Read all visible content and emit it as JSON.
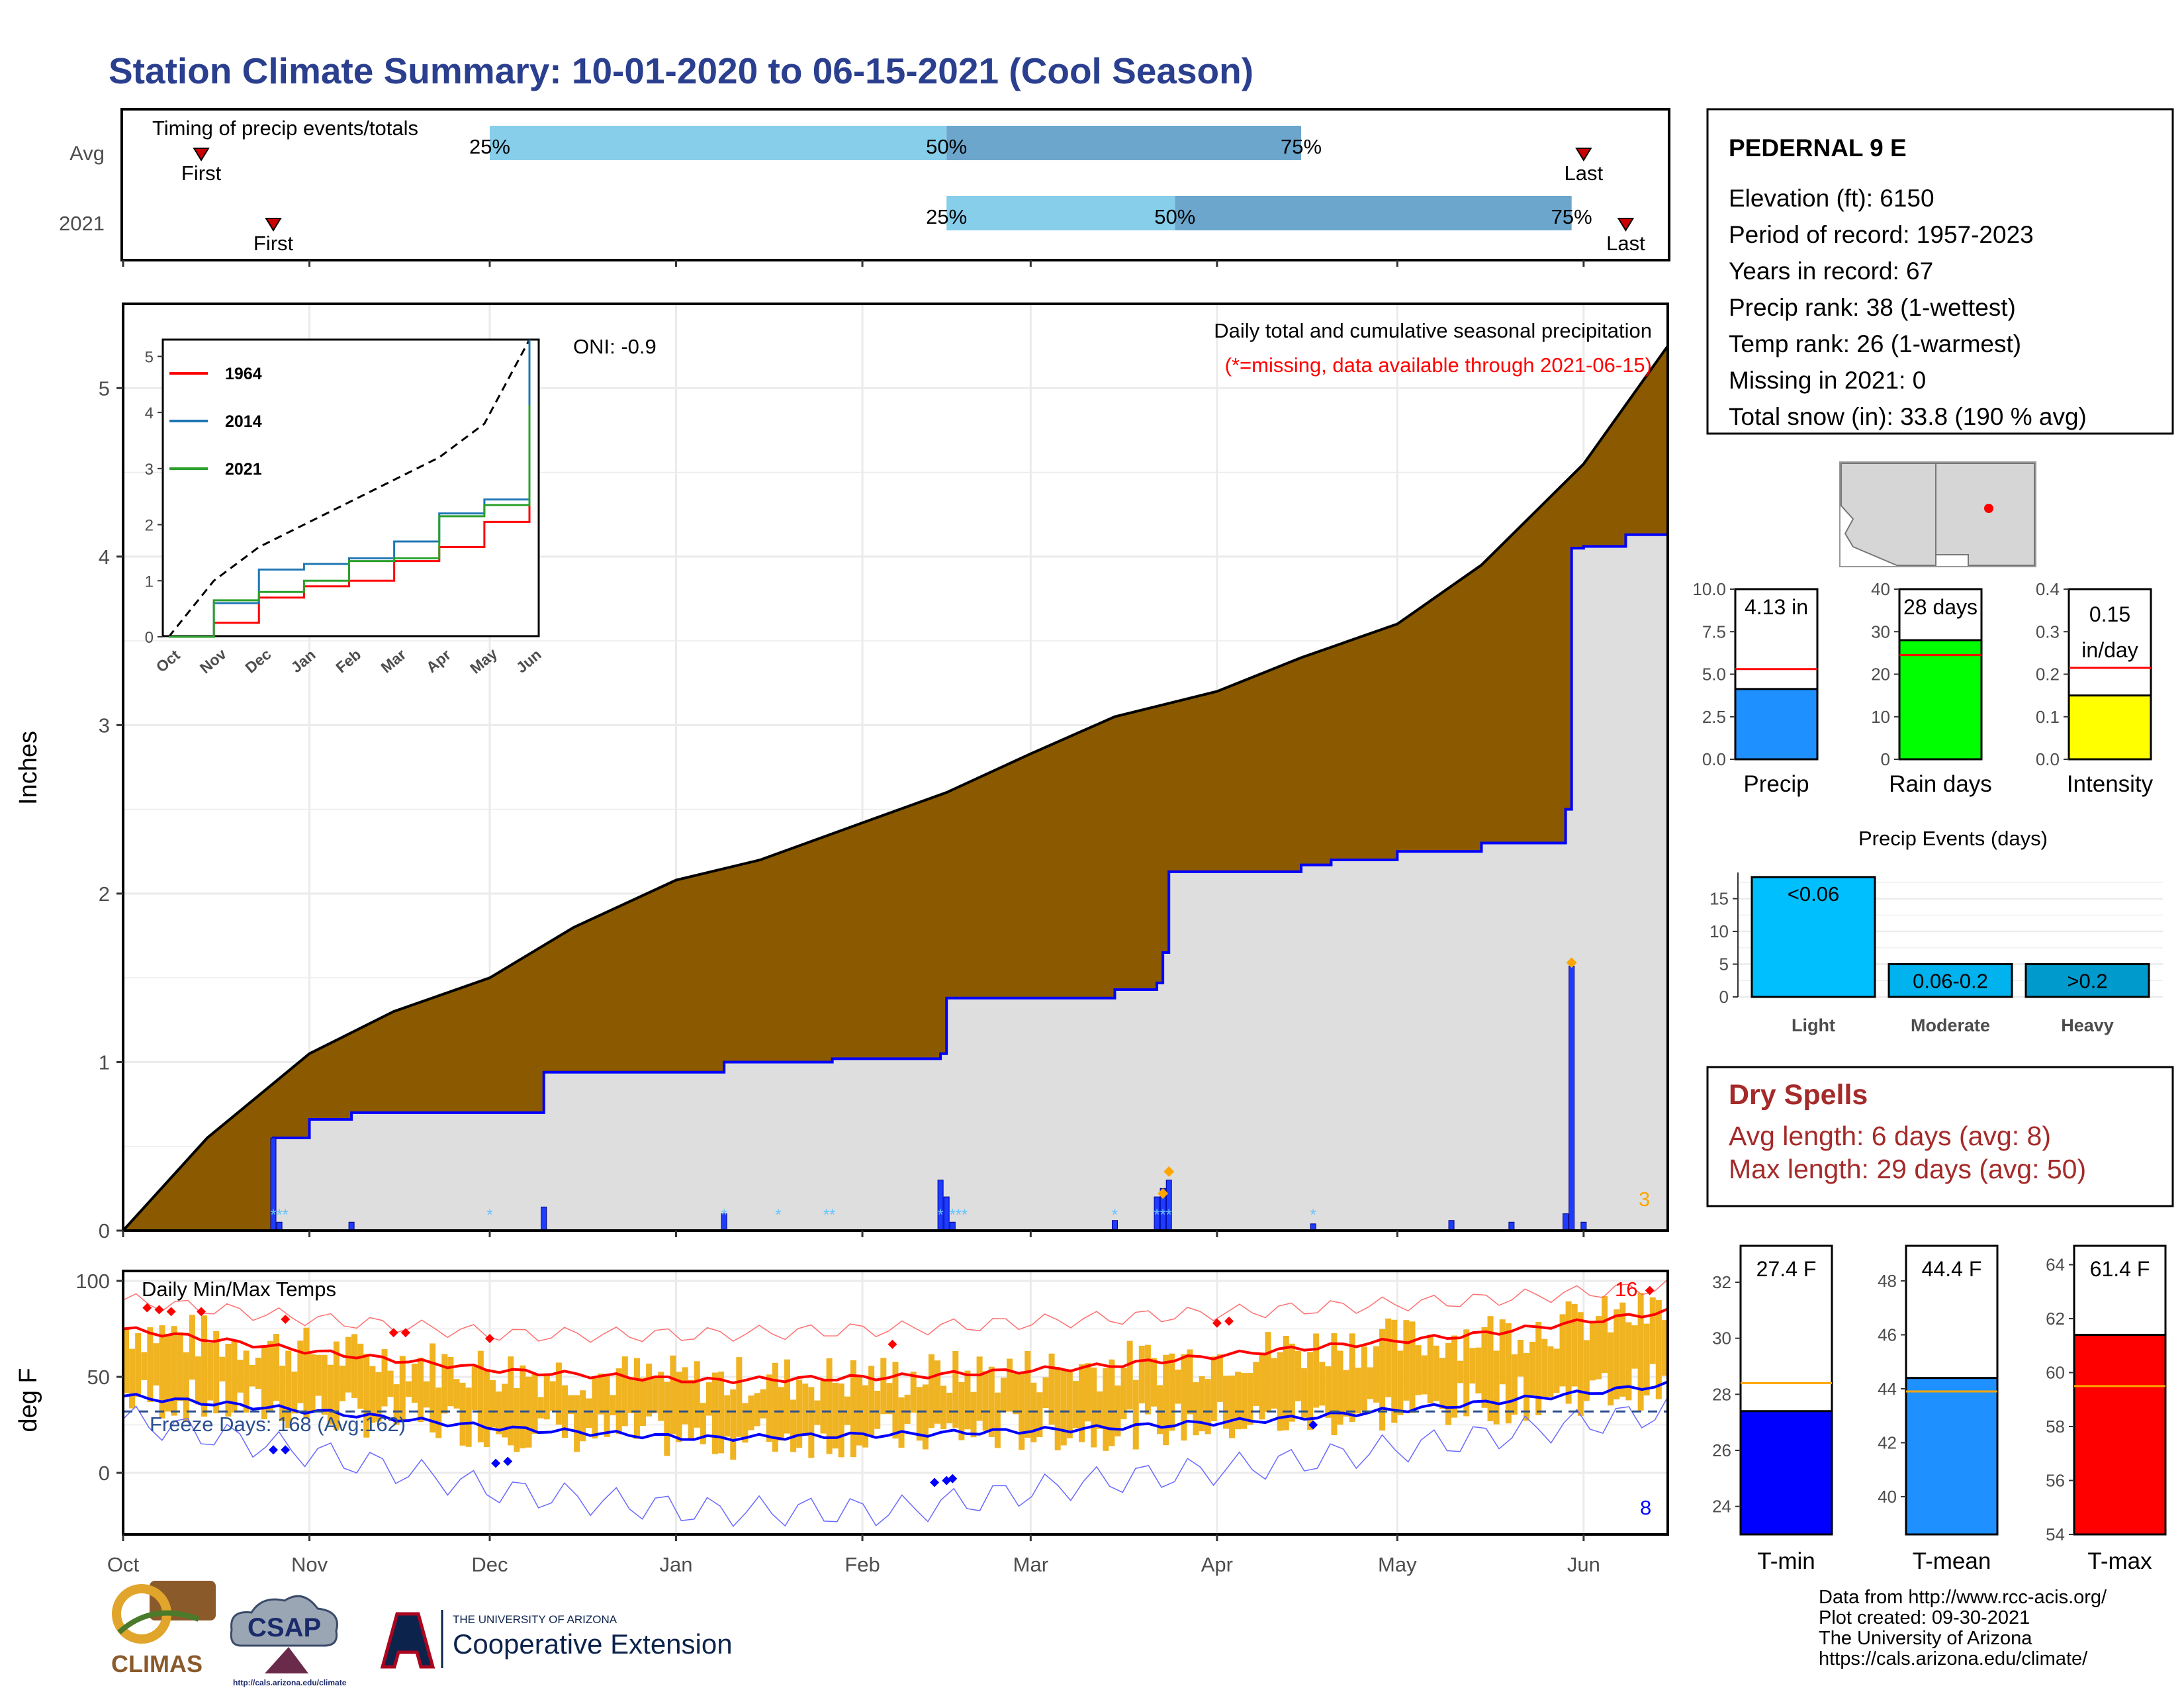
{
  "title": "Station Climate Summary: 10-01-2020 to 06-15-2021 (Cool Season)",
  "colors": {
    "title": "#2b3f8f",
    "light_q": "#87ceeb",
    "dark_q": "#6ca6cd",
    "cum_avg": "#8b5a00",
    "cum_obs_fill": "#dedede",
    "cum_obs_line": "#0000ff",
    "band": "#f0b321",
    "red": "#ff0000",
    "blue": "#0000ff",
    "dryspell": "#a52a2a"
  },
  "timing": {
    "label": "Timing of precip events/totals",
    "rows": [
      {
        "name": "Avg",
        "first_label": "First",
        "last_label": "Last",
        "first_date": "2020-10-14",
        "last_date": "2021-06-01",
        "q25": "25%",
        "q50": "50%",
        "q75": "75%",
        "q25_date": "2020-12-01",
        "q50_date": "2021-02-15",
        "q75_date": "2021-04-15"
      },
      {
        "name": "2021",
        "first_label": "First",
        "last_label": "Last",
        "first_date": "2020-10-26",
        "last_date": "2021-06-08",
        "q25": "25%",
        "q50": "50%",
        "q75": "75%",
        "q25_date": "2021-02-15",
        "q50_date": "2021-03-25",
        "q75_date": "2021-05-30"
      }
    ]
  },
  "precip_panel": {
    "ylabel": "Inches",
    "title": "Daily total and cumulative seasonal precipitation",
    "subtitle": "(*=missing, data available through 2021-06-15)",
    "oni": "ONI: -0.9",
    "count_label": "3",
    "yticks": [
      "0",
      "1",
      "2",
      "3",
      "4",
      "5"
    ]
  },
  "inset": {
    "series": [
      {
        "name": "1964",
        "color": "#ff0000"
      },
      {
        "name": "2014",
        "color": "#1f77b4"
      },
      {
        "name": "2021",
        "color": "#2ca02c"
      }
    ],
    "yticks": [
      "0",
      "1",
      "2",
      "3",
      "4",
      "5"
    ],
    "xticks": [
      "Oct",
      "Nov",
      "Dec",
      "Jan",
      "Feb",
      "Mar",
      "Apr",
      "May",
      "Jun"
    ]
  },
  "temp_panel": {
    "ylabel": "deg F",
    "title": "Daily Min/Max Temps",
    "freeze_label": "Freeze Days: 168 (Avg:162)",
    "hot_count": "16",
    "cold_count": "8",
    "yticks": [
      "0",
      "50",
      "100"
    ]
  },
  "x_months": [
    "Oct",
    "Nov",
    "Dec",
    "Jan",
    "Feb",
    "Mar",
    "Apr",
    "May",
    "Jun"
  ],
  "station": {
    "name": "PEDERNAL 9 E",
    "lines": [
      "Elevation (ft): 6150",
      "Period of record: 1957-2023",
      "Years in record: 67",
      "Precip rank: 38 (1-wettest)",
      "Temp rank: 26 (1-warmest)",
      "Missing in 2021: 0",
      "Total snow (in): 33.8 (190 % avg)"
    ]
  },
  "mini_bars": [
    {
      "label": "Precip",
      "value_label": "4.13 in",
      "value": 4.13,
      "avg": 5.3,
      "ymax": 10.0,
      "yticks": [
        "0.0",
        "2.5",
        "5.0",
        "7.5",
        "10.0"
      ],
      "color": "#1e90ff"
    },
    {
      "label": "Rain days",
      "value_label": "28 days",
      "value": 28,
      "avg": 24.5,
      "ymax": 40,
      "yticks": [
        "0",
        "10",
        "20",
        "30",
        "40"
      ],
      "color": "#00ff00"
    },
    {
      "label": "Intensity",
      "value_label": "0.15\nin/day",
      "value_label_1": "0.15",
      "value_label_2": "in/day",
      "value": 0.15,
      "avg": 0.215,
      "ymax": 0.4,
      "yticks": [
        "0.0",
        "0.1",
        "0.2",
        "0.3",
        "0.4"
      ],
      "color": "#ffff00"
    }
  ],
  "precip_events": {
    "title": "Precip Events (days)",
    "yticks": [
      "0",
      "5",
      "10",
      "15"
    ],
    "bars": [
      {
        "category": "Light",
        "label": "<0.06",
        "value": 18.3,
        "color": "#00bfff"
      },
      {
        "category": "Moderate",
        "label": "0.06-0.2",
        "value": 5,
        "color": "#00b2ee"
      },
      {
        "category": "Heavy",
        "label": ">0.2",
        "value": 5,
        "color": "#009acd"
      }
    ]
  },
  "dry_spells": {
    "title": "Dry Spells",
    "avg_line": "Avg length: 6 days (avg: 8)",
    "max_line": "Max length: 29 days (avg: 50)"
  },
  "temp_bars": [
    {
      "label": "T-min",
      "value_label": "27.4 F",
      "value": 27.4,
      "avg": 28.4,
      "ymin": 23,
      "ymax": 33.3,
      "yticks": [
        "24",
        "26",
        "28",
        "30",
        "32"
      ],
      "color": "#0000ff"
    },
    {
      "label": "T-mean",
      "value_label": "44.4 F",
      "value": 44.4,
      "avg": 43.9,
      "ymin": 38.6,
      "ymax": 49.3,
      "yticks": [
        "40",
        "42",
        "44",
        "46",
        "48"
      ],
      "color": "#1e90ff"
    },
    {
      "label": "T-max",
      "value_label": "61.4 F",
      "value": 61.4,
      "avg": 59.5,
      "ymin": 54,
      "ymax": 64.7,
      "yticks": [
        "54",
        "56",
        "58",
        "60",
        "62",
        "64"
      ],
      "color": "#ff0000"
    }
  ],
  "footer": [
    "Data from http://www.rcc-acis.org/",
    "Plot created: 09-30-2021",
    "The University of Arizona",
    "https://cals.arizona.edu/climate/"
  ],
  "logos": {
    "climas": "CLIMAS",
    "csap": "CSAP",
    "csap_url": "http://cals.arizona.edu/climate",
    "ua_small": "THE UNIVERSITY OF ARIZONA",
    "ua_big": "Cooperative Extension",
    "ua_letter": "A"
  },
  "chart_data": [
    {
      "type": "area",
      "title": "Daily total and cumulative seasonal precipitation",
      "ylabel": "Inches",
      "ylim": [
        0,
        5.5
      ],
      "x_range": [
        "2020-10-01",
        "2021-06-15"
      ],
      "series": [
        {
          "name": "avg_cumulative",
          "x": [
            "2020-10-01",
            "2020-10-15",
            "2020-11-01",
            "2020-11-15",
            "2020-12-01",
            "2020-12-15",
            "2021-01-01",
            "2021-01-15",
            "2021-02-01",
            "2021-02-15",
            "2021-03-01",
            "2021-03-15",
            "2021-04-01",
            "2021-04-15",
            "2021-05-01",
            "2021-05-15",
            "2021-06-01",
            "2021-06-15"
          ],
          "values": [
            0,
            0.55,
            1.05,
            1.3,
            1.5,
            1.8,
            2.08,
            2.2,
            2.42,
            2.6,
            2.83,
            3.05,
            3.2,
            3.4,
            3.6,
            3.95,
            4.55,
            5.25
          ]
        },
        {
          "name": "observed_cumulative",
          "x": [
            "2020-10-01",
            "2020-10-25",
            "2020-10-26",
            "2020-11-01",
            "2020-11-08",
            "2020-12-01",
            "2020-12-10",
            "2021-01-09",
            "2021-01-27",
            "2021-02-14",
            "2021-02-15",
            "2021-03-15",
            "2021-03-16",
            "2021-03-22",
            "2021-03-23",
            "2021-03-24",
            "2021-04-15",
            "2021-04-20",
            "2021-05-01",
            "2021-05-15",
            "2021-05-29",
            "2021-05-30",
            "2021-06-01",
            "2021-06-08",
            "2021-06-15"
          ],
          "values": [
            0,
            0,
            0.55,
            0.66,
            0.7,
            0.7,
            0.94,
            1.0,
            1.02,
            1.05,
            1.38,
            1.43,
            1.43,
            1.47,
            1.65,
            2.13,
            2.17,
            2.2,
            2.25,
            2.3,
            2.5,
            4.05,
            4.06,
            4.13,
            4.13
          ]
        },
        {
          "name": "daily",
          "x": [
            "2020-10-26",
            "2020-10-27",
            "2020-11-08",
            "2020-12-10",
            "2021-01-09",
            "2021-02-14",
            "2021-02-15",
            "2021-02-16",
            "2021-03-15",
            "2021-03-22",
            "2021-03-23",
            "2021-03-24",
            "2021-04-17",
            "2021-05-10",
            "2021-05-20",
            "2021-06-01",
            "2021-05-29",
            "2021-05-30"
          ],
          "values": [
            0.55,
            0.05,
            0.05,
            0.14,
            0.1,
            0.3,
            0.2,
            0.05,
            0.06,
            0.2,
            0.25,
            0.3,
            0.04,
            0.06,
            0.05,
            0.05,
            0.1,
            1.57
          ]
        }
      ]
    },
    {
      "type": "line",
      "title": "",
      "xlabel": "",
      "ylabel": "",
      "x": [
        "Oct",
        "Nov",
        "Dec",
        "Jan",
        "Feb",
        "Mar",
        "Apr",
        "May",
        "Jun"
      ],
      "ylim": [
        0,
        5.3
      ],
      "series": [
        {
          "name": "1964",
          "values": [
            0,
            0.25,
            0.7,
            0.9,
            1.0,
            1.35,
            1.6,
            2.05,
            2.45
          ]
        },
        {
          "name": "2014",
          "values": [
            0,
            0.6,
            1.2,
            1.3,
            1.4,
            1.7,
            2.2,
            2.45,
            5.3
          ]
        },
        {
          "name": "2021",
          "values": [
            0,
            0.65,
            0.8,
            1.0,
            1.35,
            1.4,
            2.15,
            2.35,
            4.13
          ]
        }
      ]
    },
    {
      "type": "line",
      "title": "Daily Min/Max Temps",
      "ylabel": "deg F",
      "ylim": [
        -30,
        100
      ],
      "x": [
        "Oct",
        "Nov",
        "Dec",
        "Jan",
        "Feb",
        "Mar",
        "Apr",
        "May",
        "Jun"
      ],
      "series": [
        {
          "name": "avg_max",
          "values": [
            75,
            63,
            53,
            48,
            50,
            55,
            64,
            72,
            84
          ]
        },
        {
          "name": "avg_min",
          "values": [
            40,
            32,
            23,
            18,
            20,
            23,
            28,
            36,
            46
          ]
        },
        {
          "name": "record_max",
          "values": [
            90,
            80,
            72,
            72,
            75,
            80,
            85,
            90,
            97
          ]
        },
        {
          "name": "record_min",
          "values": [
            28,
            10,
            -10,
            -20,
            -20,
            -5,
            5,
            18,
            32
          ]
        },
        {
          "name": "freeze_line",
          "values": [
            32,
            32,
            32,
            32,
            32,
            32,
            32,
            32,
            32
          ]
        }
      ]
    },
    {
      "type": "bar",
      "title": "Precip Events (days)",
      "categories": [
        "Light",
        "Moderate",
        "Heavy"
      ],
      "values": [
        18.3,
        5,
        5
      ],
      "ylim": [
        0,
        19
      ]
    },
    {
      "type": "bar",
      "categories": [
        "Precip",
        "Rain days",
        "Intensity",
        "T-min",
        "T-mean",
        "T-max"
      ],
      "values": [
        4.13,
        28,
        0.15,
        27.4,
        44.4,
        61.4
      ]
    }
  ]
}
